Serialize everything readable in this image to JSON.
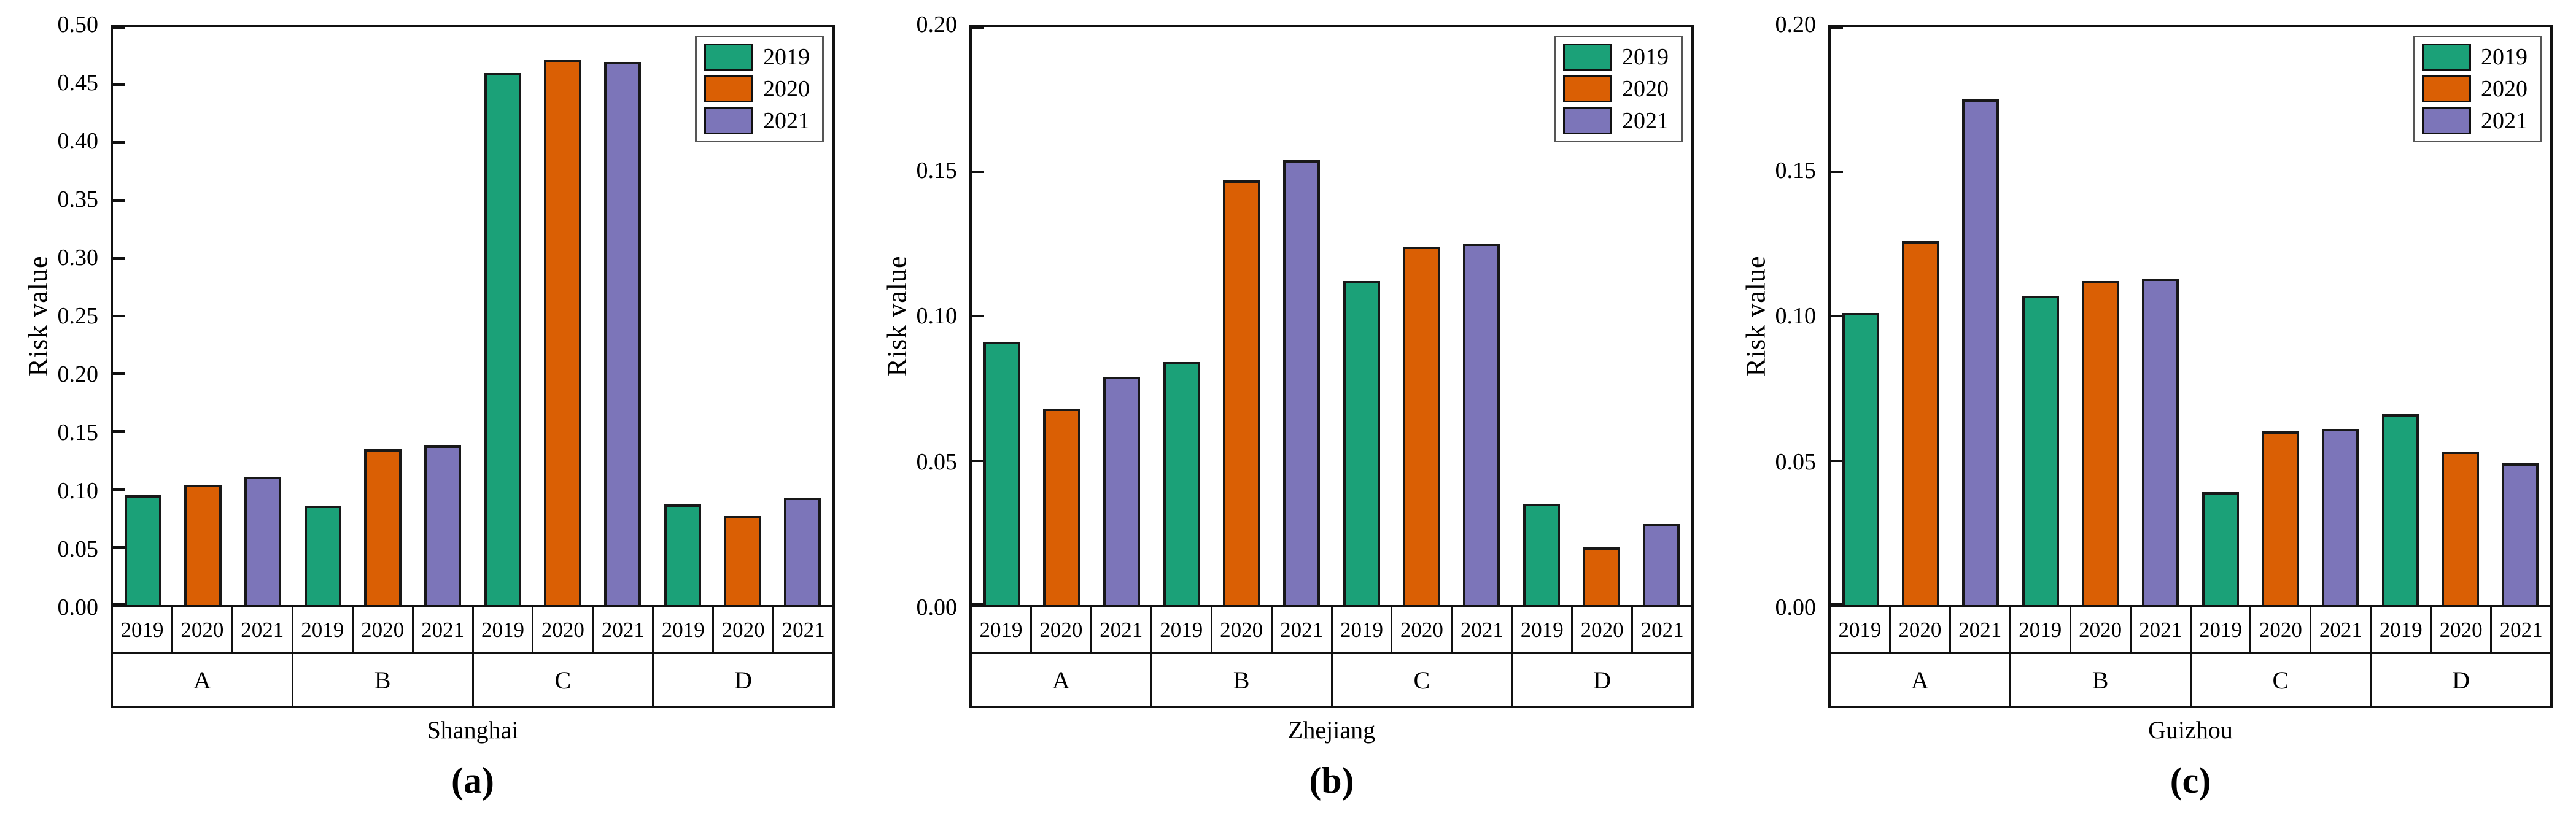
{
  "figure": {
    "background": "#ffffff",
    "grid": false,
    "legend_position": "top-right"
  },
  "chart_data": [
    {
      "type": "bar",
      "panel_label": "(a)",
      "xlabel": "Shanghai",
      "ylabel": "Risk value",
      "ylim": [
        0,
        0.5
      ],
      "yticks": [
        0.0,
        0.05,
        0.1,
        0.15,
        0.2,
        0.25,
        0.3,
        0.35,
        0.4,
        0.45,
        0.5
      ],
      "categories": [
        "A",
        "B",
        "C",
        "D"
      ],
      "legend": [
        "2019",
        "2020",
        "2021"
      ],
      "series": [
        {
          "name": "2019",
          "color": "#1BA178",
          "values": [
            0.095,
            0.086,
            0.46,
            0.087
          ]
        },
        {
          "name": "2020",
          "color": "#DA5F04",
          "values": [
            0.104,
            0.135,
            0.472,
            0.077
          ]
        },
        {
          "name": "2021",
          "color": "#7C75B9",
          "values": [
            0.111,
            0.138,
            0.47,
            0.093
          ]
        }
      ]
    },
    {
      "type": "bar",
      "panel_label": "(b)",
      "xlabel": "Zhejiang",
      "ylabel": "Risk value",
      "ylim": [
        0,
        0.2
      ],
      "yticks": [
        0.0,
        0.05,
        0.1,
        0.15,
        0.2
      ],
      "categories": [
        "A",
        "B",
        "C",
        "D"
      ],
      "legend": [
        "2019",
        "2020",
        "2021"
      ],
      "series": [
        {
          "name": "2019",
          "color": "#1BA178",
          "values": [
            0.091,
            0.084,
            0.112,
            0.035
          ]
        },
        {
          "name": "2020",
          "color": "#DA5F04",
          "values": [
            0.068,
            0.147,
            0.124,
            0.02
          ]
        },
        {
          "name": "2021",
          "color": "#7C75B9",
          "values": [
            0.079,
            0.154,
            0.125,
            0.028
          ]
        }
      ]
    },
    {
      "type": "bar",
      "panel_label": "(c)",
      "xlabel": "Guizhou",
      "ylabel": "Risk value",
      "ylim": [
        0,
        0.2
      ],
      "yticks": [
        0.0,
        0.05,
        0.1,
        0.15,
        0.2
      ],
      "categories": [
        "A",
        "B",
        "C",
        "D"
      ],
      "legend": [
        "2019",
        "2020",
        "2021"
      ],
      "series": [
        {
          "name": "2019",
          "color": "#1BA178",
          "values": [
            0.101,
            0.107,
            0.039,
            0.066
          ]
        },
        {
          "name": "2020",
          "color": "#DA5F04",
          "values": [
            0.126,
            0.112,
            0.06,
            0.053
          ]
        },
        {
          "name": "2021",
          "color": "#7C75B9",
          "values": [
            0.175,
            0.113,
            0.061,
            0.049
          ]
        }
      ]
    }
  ]
}
